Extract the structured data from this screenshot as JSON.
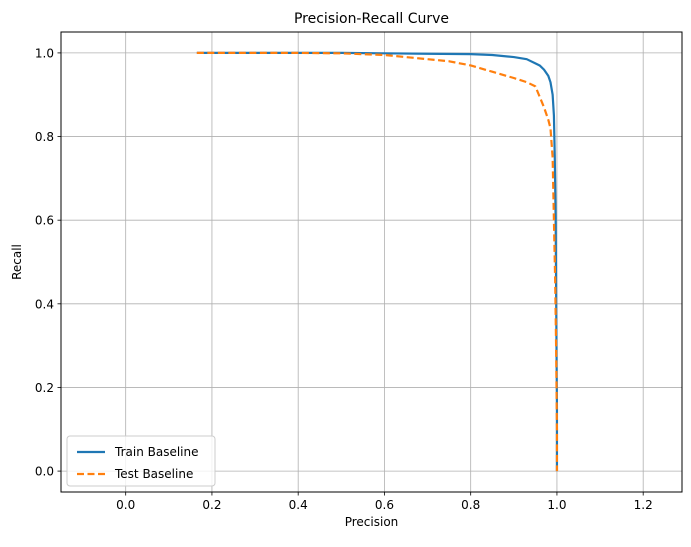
{
  "chart_data": {
    "type": "line",
    "title": "Precision-Recall Curve",
    "xlabel": "Precision",
    "ylabel": "Recall",
    "xlim": [
      -0.15,
      1.29
    ],
    "ylim": [
      -0.05,
      1.05
    ],
    "xticks": [
      0.0,
      0.2,
      0.4,
      0.6,
      0.8,
      1.0,
      1.2
    ],
    "xtick_labels": [
      "0.0",
      "0.2",
      "0.4",
      "0.6",
      "0.8",
      "1.0",
      "1.2"
    ],
    "yticks": [
      0.0,
      0.2,
      0.4,
      0.6,
      0.8,
      1.0
    ],
    "ytick_labels": [
      "0.0",
      "0.2",
      "0.4",
      "0.6",
      "0.8",
      "1.0"
    ],
    "grid": true,
    "legend_position": "lower-left",
    "series": [
      {
        "name": "Train Baseline",
        "color": "#1f77b4",
        "style": "solid",
        "x": [
          0.165,
          0.3,
          0.5,
          0.6,
          0.7,
          0.8,
          0.85,
          0.9,
          0.93,
          0.95,
          0.96,
          0.97,
          0.98,
          0.985,
          0.99,
          0.993,
          0.995,
          0.997,
          0.998,
          0.999,
          1.0,
          1.0
        ],
        "y": [
          1.0,
          1.0,
          1.0,
          0.999,
          0.998,
          0.997,
          0.995,
          0.99,
          0.985,
          0.975,
          0.97,
          0.96,
          0.945,
          0.93,
          0.9,
          0.85,
          0.75,
          0.6,
          0.45,
          0.3,
          0.15,
          0.0
        ]
      },
      {
        "name": "Test Baseline",
        "color": "#ff7f0e",
        "style": "dashed",
        "x": [
          0.165,
          0.4,
          0.5,
          0.55,
          0.6,
          0.65,
          0.7,
          0.75,
          0.8,
          0.85,
          0.9,
          0.93,
          0.95,
          0.96,
          0.97,
          0.98,
          0.985,
          0.99,
          0.993,
          0.996,
          0.998,
          1.0,
          1.0
        ],
        "y": [
          1.0,
          1.0,
          0.999,
          0.997,
          0.995,
          0.99,
          0.985,
          0.98,
          0.97,
          0.955,
          0.94,
          0.93,
          0.92,
          0.895,
          0.87,
          0.84,
          0.82,
          0.75,
          0.6,
          0.45,
          0.3,
          0.1,
          0.0
        ]
      }
    ]
  }
}
